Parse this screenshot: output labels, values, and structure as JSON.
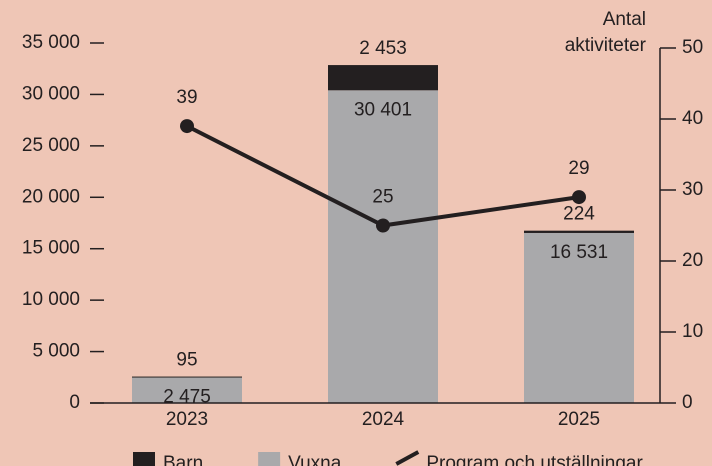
{
  "chart_data": {
    "type": "bar",
    "stacked": true,
    "categories": [
      "2023",
      "2024",
      "2025"
    ],
    "series": [
      {
        "name": "Vuxna",
        "color": "#a9a9ab",
        "values": [
          2475,
          30401,
          16531
        ],
        "value_labels": [
          "2 475",
          "30 401",
          "16 531"
        ]
      },
      {
        "name": "Barn",
        "color": "#231f20",
        "values": [
          95,
          2453,
          224
        ],
        "value_labels": [
          "95",
          "2 453",
          "224"
        ]
      },
      {
        "name": "Program och utställningar",
        "type": "line",
        "axis": "y2",
        "color": "#231f20",
        "values": [
          39,
          25,
          29
        ]
      }
    ],
    "legend_order": [
      1,
      0,
      2
    ],
    "ylim": [
      0,
      35000
    ],
    "yticks": [
      0,
      {
        "value": 5000,
        "label": "5 000"
      },
      {
        "value": 10000,
        "label": "10 000"
      },
      {
        "value": 15000,
        "label": "15 000"
      },
      {
        "value": 20000,
        "label": "20 000"
      },
      {
        "value": 25000,
        "label": "25 000"
      },
      {
        "value": 30000,
        "label": "30 000"
      },
      {
        "value": 35000,
        "label": "35 000"
      }
    ],
    "y2lim": [
      0,
      50
    ],
    "y2ticks": [
      0,
      10,
      20,
      30,
      40,
      50
    ],
    "y2_label_lines": [
      "Antal",
      "aktiviteter"
    ],
    "legend": "bottom"
  }
}
